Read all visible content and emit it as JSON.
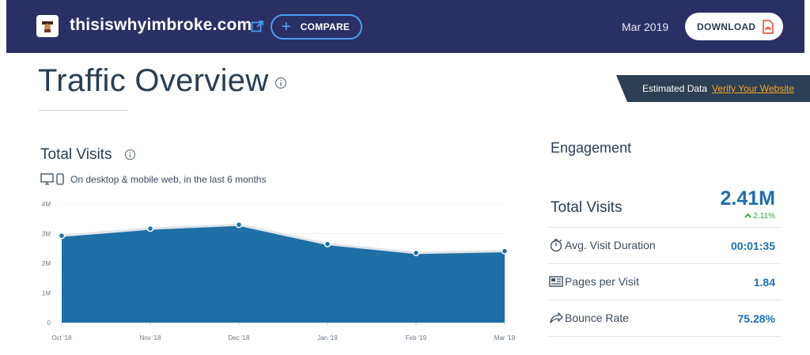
{
  "header": {
    "site_name": "thisiswhyimbroke.com",
    "compare_label": "COMPARE",
    "date": "Mar 2019",
    "download_label": "DOWNLOAD"
  },
  "page": {
    "title": "Traffic Overview",
    "estimated_label": "Estimated Data",
    "verify_label": "Verify Your Website"
  },
  "total_visits": {
    "title": "Total Visits",
    "devices_text": "On desktop & mobile web, in the last 6 months"
  },
  "chart_data": {
    "type": "area",
    "categories": [
      "Oct '18",
      "Nov '18",
      "Dec '18",
      "Jan '19",
      "Feb '19",
      "Mar '19"
    ],
    "values": [
      2.93,
      3.17,
      3.3,
      2.65,
      2.35,
      2.41
    ],
    "y_ticks": [
      "0",
      "1M",
      "2M",
      "3M",
      "4M"
    ],
    "ylim": [
      0,
      4
    ],
    "color": "#1e6fa6"
  },
  "engagement": {
    "title": "Engagement",
    "total_visits_label": "Total Visits",
    "total_visits_value": "2.41M",
    "total_visits_change": "2.11%",
    "rows": [
      {
        "label": "Avg. Visit Duration",
        "value": "00:01:35",
        "icon": "stopwatch-icon"
      },
      {
        "label": "Pages per Visit",
        "value": "1.84",
        "icon": "pages-icon"
      },
      {
        "label": "Bounce Rate",
        "value": "75.28%",
        "icon": "bounce-arrow-icon"
      }
    ]
  }
}
